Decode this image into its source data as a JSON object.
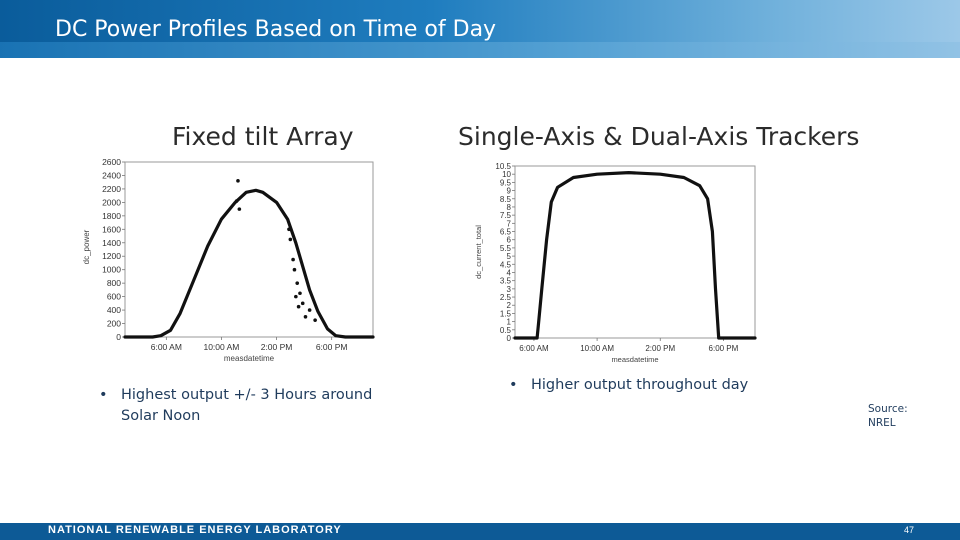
{
  "slide": {
    "title": "DC Power Profiles Based on Time of Day",
    "left_heading": "Fixed tilt Array",
    "right_heading": "Single-Axis & Dual-Axis Trackers",
    "left_bullet_marker": "•",
    "left_bullet_line1": "Highest output +/- 3 Hours around",
    "left_bullet_line2": "Solar Noon",
    "right_bullet_marker": "•",
    "right_bullet": "Higher output throughout day",
    "source_line1": "Source:",
    "source_line2": "NREL",
    "footer_text": "NATIONAL RENEWABLE ENERGY LABORATORY",
    "page_number": "47"
  },
  "chart_data": [
    {
      "type": "scatter",
      "ylabel": "dc_power",
      "xlabel": "measdatetime",
      "x_tick_labels": [
        "6:00 AM",
        "10:00 AM",
        "2:00 PM",
        "6:00 PM"
      ],
      "x_tick_hours": [
        6,
        10,
        14,
        18
      ],
      "xlim": [
        3,
        21
      ],
      "y_ticks": [
        "2600",
        "2400",
        "2200",
        "2000",
        "1800",
        "1600",
        "1400",
        "1200",
        "1000",
        "800",
        "600",
        "400",
        "200",
        "0"
      ],
      "ylim": [
        0,
        2600
      ],
      "series": [
        {
          "points": [
            [
              3,
              0
            ],
            [
              4,
              0
            ],
            [
              5,
              0
            ],
            [
              5.6,
              20
            ],
            [
              6.3,
              100
            ],
            [
              7,
              350
            ],
            [
              8,
              850
            ],
            [
              9,
              1350
            ],
            [
              10,
              1750
            ],
            [
              11,
              2000
            ],
            [
              11.8,
              2150
            ],
            [
              12.5,
              2180
            ],
            [
              13,
              2150
            ],
            [
              14,
              2000
            ],
            [
              14.8,
              1750
            ],
            [
              15.4,
              1400
            ],
            [
              15.9,
              1050
            ],
            [
              16.4,
              700
            ],
            [
              17,
              380
            ],
            [
              17.7,
              120
            ],
            [
              18.3,
              20
            ],
            [
              19,
              0
            ],
            [
              21,
              0
            ]
          ]
        }
      ],
      "outliers": [
        [
          11.2,
          2320
        ],
        [
          11.1,
          2020
        ],
        [
          11.3,
          1900
        ],
        [
          14.9,
          1600
        ],
        [
          15,
          1450
        ],
        [
          15.3,
          1000
        ],
        [
          15.5,
          800
        ],
        [
          15.4,
          600
        ],
        [
          15.7,
          650
        ],
        [
          15.9,
          500
        ],
        [
          16.1,
          300
        ],
        [
          15.2,
          1150
        ],
        [
          15.6,
          450
        ],
        [
          16.4,
          400
        ],
        [
          16.8,
          250
        ]
      ]
    },
    {
      "type": "scatter",
      "ylabel": "dc_current_total",
      "xlabel": "measdatetime",
      "x_tick_labels": [
        "6:00 AM",
        "10:00 AM",
        "2:00 PM",
        "6:00 PM"
      ],
      "x_tick_hours": [
        6,
        10,
        14,
        18
      ],
      "xlim": [
        4.8,
        20
      ],
      "y_ticks": [
        "10.5",
        "10",
        "9.5",
        "9",
        "8.5",
        "8",
        "7.5",
        "7",
        "6.5",
        "6",
        "5.5",
        "5",
        "4.5",
        "4",
        "3.5",
        "3",
        "2.5",
        "2",
        "1.5",
        "1",
        "0.5",
        "0"
      ],
      "ylim": [
        0,
        10.5
      ],
      "series": [
        {
          "points": [
            [
              4.8,
              0
            ],
            [
              6.2,
              0
            ],
            [
              6.3,
              1
            ],
            [
              6.5,
              3
            ],
            [
              6.8,
              6
            ],
            [
              7.1,
              8.3
            ],
            [
              7.5,
              9.2
            ],
            [
              8.5,
              9.8
            ],
            [
              10,
              10
            ],
            [
              12,
              10.1
            ],
            [
              14,
              10
            ],
            [
              15.5,
              9.8
            ],
            [
              16.5,
              9.3
            ],
            [
              17,
              8.5
            ],
            [
              17.3,
              6.5
            ],
            [
              17.5,
              3
            ],
            [
              17.7,
              0
            ],
            [
              20,
              0
            ]
          ]
        }
      ]
    }
  ]
}
